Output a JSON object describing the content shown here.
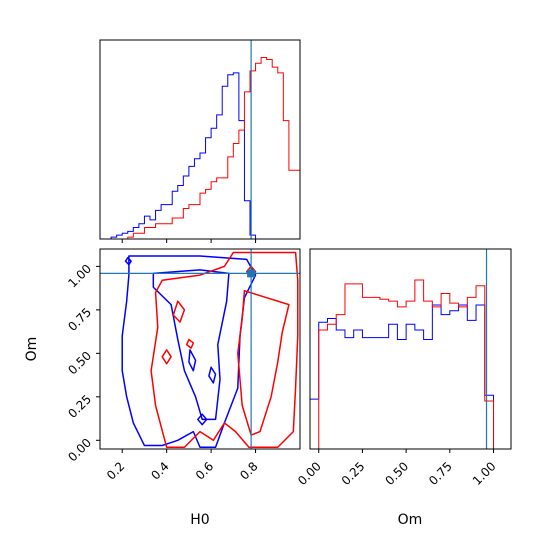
{
  "chart_data": {
    "type": "corner",
    "parameters": [
      "H0",
      "Om"
    ],
    "axis_labels": {
      "x_bottom_left": "H0",
      "x_bottom_right": "Om",
      "y_left": "Om"
    },
    "truth": {
      "H0": 0.78,
      "Om": 0.96,
      "color": "#1f77b4"
    },
    "series": [
      {
        "color": "#0000ff"
      },
      {
        "color": "#ff0000"
      }
    ],
    "panels": [
      {
        "id": "hist-H0",
        "type": "histogram",
        "xlim": [
          0.1,
          1.0
        ],
        "x_ticks": [
          0.2,
          0.4,
          0.6,
          0.8
        ],
        "bin_edges": [
          0.1,
          0.125,
          0.15,
          0.175,
          0.2,
          0.225,
          0.25,
          0.275,
          0.3,
          0.325,
          0.35,
          0.375,
          0.4,
          0.425,
          0.45,
          0.475,
          0.5,
          0.525,
          0.55,
          0.575,
          0.6,
          0.625,
          0.65,
          0.675,
          0.7,
          0.725,
          0.75,
          0.775,
          0.8,
          0.825,
          0.85,
          0.875,
          0.9,
          0.925,
          0.95,
          0.975,
          1.0
        ],
        "series_heights": [
          [
            0.0,
            0.0,
            0.01,
            0.02,
            0.03,
            0.04,
            0.06,
            0.08,
            0.12,
            0.1,
            0.15,
            0.18,
            0.18,
            0.25,
            0.28,
            0.33,
            0.38,
            0.42,
            0.45,
            0.53,
            0.58,
            0.65,
            0.8,
            0.86,
            0.87,
            0.62,
            0.2,
            0.02,
            0.0,
            0.0,
            0.0,
            0.0,
            0.0,
            0.0,
            0.0,
            0.0
          ],
          [
            0.0,
            0.0,
            0.0,
            0.0,
            0.0,
            0.01,
            0.03,
            0.03,
            0.06,
            0.06,
            0.08,
            0.08,
            0.08,
            0.11,
            0.11,
            0.16,
            0.18,
            0.18,
            0.24,
            0.26,
            0.3,
            0.32,
            0.32,
            0.43,
            0.5,
            0.57,
            0.77,
            0.88,
            0.92,
            0.95,
            0.94,
            0.9,
            0.87,
            0.62,
            0.36,
            0.36
          ]
        ]
      },
      {
        "id": "hist-Om",
        "type": "histogram",
        "xlim": [
          -0.05,
          1.1
        ],
        "x_ticks": [
          0.0,
          0.25,
          0.5,
          0.75,
          1.0
        ],
        "x_tick_labels": [
          "0.00",
          "0.25",
          "0.50",
          "0.75",
          "1.00"
        ],
        "bin_edges": [
          -0.05,
          0.0,
          0.05,
          0.1,
          0.15,
          0.2,
          0.25,
          0.3,
          0.35,
          0.4,
          0.45,
          0.5,
          0.55,
          0.6,
          0.65,
          0.7,
          0.75,
          0.8,
          0.85,
          0.9,
          0.95,
          1.0,
          1.05,
          1.1
        ],
        "series_heights": [
          [
            0.26,
            0.66,
            0.68,
            0.62,
            0.58,
            0.62,
            0.58,
            0.58,
            0.58,
            0.65,
            0.57,
            0.65,
            0.62,
            0.57,
            0.75,
            0.7,
            0.72,
            0.75,
            0.67,
            0.75,
            0.28,
            0.0,
            0.0
          ],
          [
            0.0,
            0.62,
            0.65,
            0.7,
            0.86,
            0.86,
            0.79,
            0.79,
            0.78,
            0.77,
            0.74,
            0.77,
            0.88,
            0.77,
            0.74,
            0.81,
            0.76,
            0.74,
            0.79,
            0.85,
            0.25,
            0.0,
            0.0
          ]
        ]
      },
      {
        "id": "contour-H0-Om",
        "type": "contour",
        "xlim": [
          0.1,
          1.0
        ],
        "ylim": [
          -0.05,
          1.1
        ],
        "x_ticks": [
          0.2,
          0.4,
          0.6,
          0.8
        ],
        "y_ticks": [
          0.0,
          0.25,
          0.5,
          0.75,
          1.0
        ],
        "y_tick_labels": [
          "0.00",
          "0.25",
          "0.50",
          "0.75",
          "1.00"
        ],
        "contours": [
          {
            "series": 0,
            "points": [
              [
                0.23,
                1.06
              ],
              [
                0.55,
                1.06
              ],
              [
                0.76,
                1.04
              ],
              [
                0.8,
                0.95
              ],
              [
                0.75,
                0.82
              ],
              [
                0.73,
                0.6
              ],
              [
                0.72,
                0.3
              ],
              [
                0.66,
                0.1
              ],
              [
                0.62,
                -0.04
              ],
              [
                0.55,
                -0.04
              ],
              [
                0.52,
                0.05
              ],
              [
                0.45,
                0.0
              ],
              [
                0.38,
                -0.03
              ],
              [
                0.3,
                -0.03
              ],
              [
                0.25,
                0.1
              ],
              [
                0.22,
                0.25
              ],
              [
                0.2,
                0.4
              ],
              [
                0.2,
                0.6
              ],
              [
                0.22,
                0.8
              ],
              [
                0.23,
                0.95
              ],
              [
                0.23,
                1.06
              ]
            ]
          },
          {
            "series": 0,
            "points": [
              [
                0.34,
                0.96
              ],
              [
                0.55,
                0.98
              ],
              [
                0.68,
                0.96
              ],
              [
                0.67,
                0.8
              ],
              [
                0.63,
                0.55
              ],
              [
                0.64,
                0.35
              ],
              [
                0.62,
                0.12
              ],
              [
                0.56,
                0.12
              ],
              [
                0.53,
                0.25
              ],
              [
                0.48,
                0.4
              ],
              [
                0.45,
                0.58
              ],
              [
                0.42,
                0.78
              ],
              [
                0.34,
                0.88
              ],
              [
                0.34,
                0.96
              ]
            ]
          },
          {
            "series": 0,
            "points": [
              [
                0.505,
                0.52
              ],
              [
                0.53,
                0.46
              ],
              [
                0.52,
                0.4
              ],
              [
                0.5,
                0.45
              ],
              [
                0.505,
                0.52
              ]
            ]
          },
          {
            "series": 0,
            "points": [
              [
                0.6,
                0.42
              ],
              [
                0.62,
                0.38
              ],
              [
                0.61,
                0.33
              ],
              [
                0.59,
                0.37
              ],
              [
                0.6,
                0.42
              ]
            ]
          },
          {
            "series": 0,
            "points": [
              [
                0.56,
                0.15
              ],
              [
                0.58,
                0.12
              ],
              [
                0.56,
                0.09
              ],
              [
                0.54,
                0.12
              ],
              [
                0.56,
                0.15
              ]
            ]
          },
          {
            "series": 0,
            "points": [
              [
                0.225,
                1.05
              ],
              [
                0.24,
                1.03
              ],
              [
                0.23,
                1.01
              ],
              [
                0.215,
                1.03
              ],
              [
                0.225,
                1.05
              ]
            ]
          },
          {
            "series": 1,
            "points": [
              [
                0.7,
                1.08
              ],
              [
                0.98,
                1.08
              ],
              [
                0.99,
                0.92
              ],
              [
                0.99,
                0.6
              ],
              [
                0.98,
                0.3
              ],
              [
                0.97,
                0.05
              ],
              [
                0.9,
                -0.04
              ],
              [
                0.77,
                -0.04
              ],
              [
                0.71,
                0.05
              ],
              [
                0.66,
                0.1
              ],
              [
                0.61,
                0.0
              ],
              [
                0.55,
                0.05
              ],
              [
                0.48,
                -0.04
              ],
              [
                0.4,
                -0.04
              ],
              [
                0.35,
                0.2
              ],
              [
                0.33,
                0.4
              ],
              [
                0.36,
                0.65
              ],
              [
                0.35,
                0.85
              ],
              [
                0.38,
                0.92
              ],
              [
                0.55,
                0.95
              ],
              [
                0.66,
                1.0
              ],
              [
                0.7,
                1.08
              ]
            ]
          },
          {
            "series": 1,
            "points": [
              [
                0.75,
                0.86
              ],
              [
                0.95,
                0.78
              ],
              [
                0.92,
                0.62
              ],
              [
                0.9,
                0.45
              ],
              [
                0.87,
                0.25
              ],
              [
                0.82,
                0.05
              ],
              [
                0.78,
                0.03
              ],
              [
                0.74,
                0.2
              ],
              [
                0.72,
                0.5
              ],
              [
                0.74,
                0.7
              ],
              [
                0.75,
                0.86
              ]
            ]
          },
          {
            "series": 1,
            "points": [
              [
                0.45,
                0.8
              ],
              [
                0.48,
                0.75
              ],
              [
                0.46,
                0.68
              ],
              [
                0.43,
                0.72
              ],
              [
                0.45,
                0.8
              ]
            ]
          },
          {
            "series": 1,
            "points": [
              [
                0.4,
                0.52
              ],
              [
                0.42,
                0.48
              ],
              [
                0.4,
                0.44
              ],
              [
                0.38,
                0.48
              ],
              [
                0.4,
                0.52
              ]
            ]
          },
          {
            "series": 1,
            "points": [
              [
                0.78,
                1.0
              ],
              [
                0.8,
                0.97
              ],
              [
                0.78,
                0.94
              ],
              [
                0.76,
                0.97
              ],
              [
                0.78,
                1.0
              ]
            ]
          },
          {
            "series": 1,
            "points": [
              [
                0.5,
                0.58
              ],
              [
                0.52,
                0.56
              ],
              [
                0.51,
                0.53
              ],
              [
                0.49,
                0.55
              ],
              [
                0.5,
                0.58
              ]
            ]
          }
        ]
      }
    ]
  }
}
